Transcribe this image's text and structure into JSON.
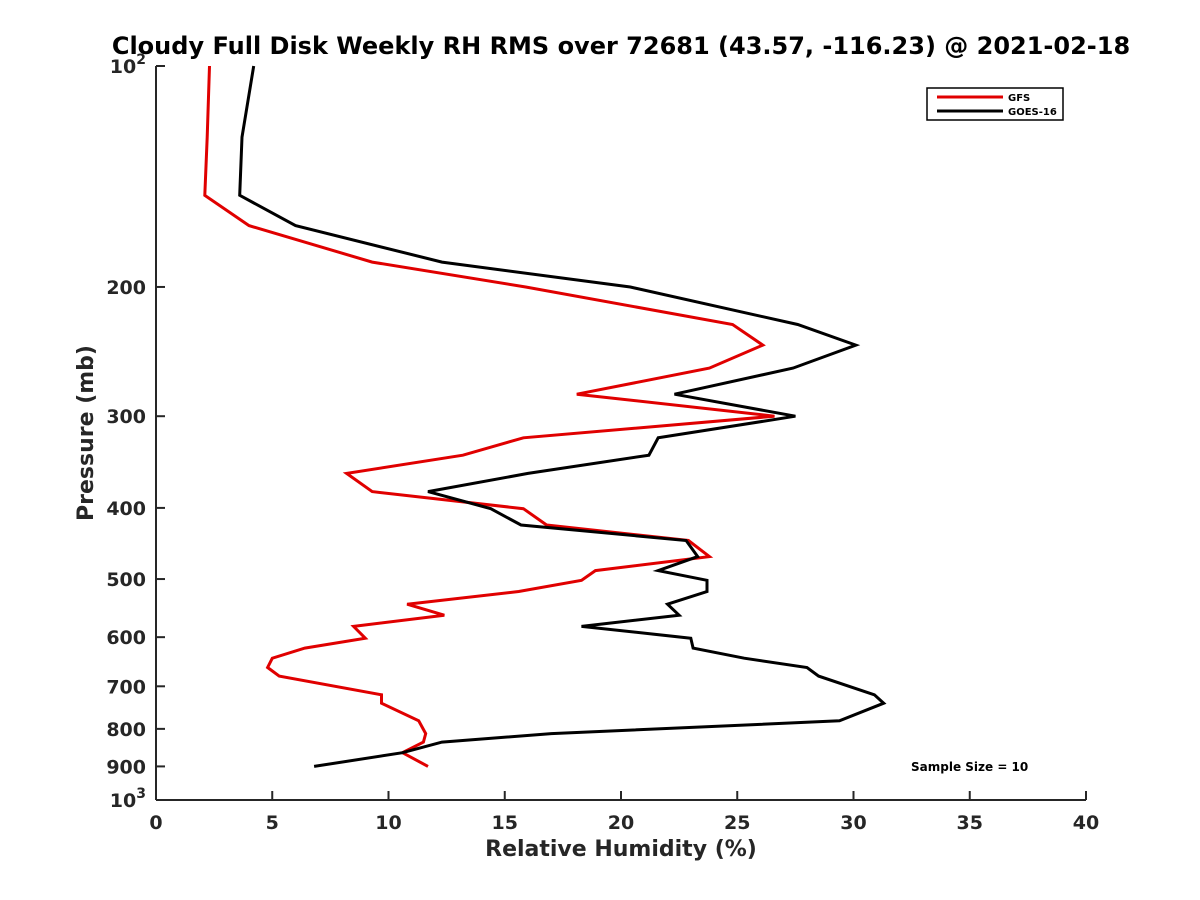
{
  "chart_data": {
    "type": "line",
    "title": "Cloudy Full Disk Weekly RH RMS over 72681 (43.57, -116.23) @ 2021-02-18",
    "xlabel": "Relative Humidity (%)",
    "ylabel": "Pressure (mb)",
    "xlim": [
      0,
      40
    ],
    "ylim": [
      100,
      1000
    ],
    "yscale": "log",
    "y_reversed": true,
    "x_ticks": [
      0,
      5,
      10,
      15,
      20,
      25,
      30,
      35,
      40
    ],
    "y_ticks": [
      {
        "value": 100,
        "label": "10",
        "sup": "2"
      },
      {
        "value": 200,
        "label": "200",
        "sup": ""
      },
      {
        "value": 300,
        "label": "300",
        "sup": ""
      },
      {
        "value": 400,
        "label": "400",
        "sup": ""
      },
      {
        "value": 500,
        "label": "500",
        "sup": ""
      },
      {
        "value": 600,
        "label": "600",
        "sup": ""
      },
      {
        "value": 700,
        "label": "700",
        "sup": ""
      },
      {
        "value": 800,
        "label": "800",
        "sup": ""
      },
      {
        "value": 900,
        "label": "900",
        "sup": ""
      },
      {
        "value": 1000,
        "label": "10",
        "sup": "3"
      }
    ],
    "grid": false,
    "legend_position": "top-right",
    "annotation": "Sample Size = 10",
    "series": [
      {
        "name": "GFS",
        "color": "#e00000",
        "points": [
          [
            2.3,
            100
          ],
          [
            2.2,
            125
          ],
          [
            2.1,
            150
          ],
          [
            4.0,
            165
          ],
          [
            9.3,
            185
          ],
          [
            15.9,
            200
          ],
          [
            24.8,
            225
          ],
          [
            26.1,
            240
          ],
          [
            23.8,
            258
          ],
          [
            18.1,
            280
          ],
          [
            26.6,
            300
          ],
          [
            15.8,
            321
          ],
          [
            13.2,
            339
          ],
          [
            8.2,
            359
          ],
          [
            9.3,
            380
          ],
          [
            15.8,
            401
          ],
          [
            16.8,
            422
          ],
          [
            22.9,
            443
          ],
          [
            23.8,
            466
          ],
          [
            18.9,
            487
          ],
          [
            18.3,
            502
          ],
          [
            15.6,
            520
          ],
          [
            10.8,
            541
          ],
          [
            12.4,
            560
          ],
          [
            8.5,
            580
          ],
          [
            9.0,
            602
          ],
          [
            6.4,
            621
          ],
          [
            5.0,
            641
          ],
          [
            4.8,
            660
          ],
          [
            5.3,
            678
          ],
          [
            9.7,
            719
          ],
          [
            9.7,
            738
          ],
          [
            11.3,
            780
          ],
          [
            11.6,
            812
          ],
          [
            11.5,
            834
          ],
          [
            10.6,
            862
          ],
          [
            11.7,
            900
          ]
        ]
      },
      {
        "name": "GOES-16",
        "color": "#000000",
        "points": [
          [
            4.2,
            100
          ],
          [
            3.7,
            125
          ],
          [
            3.6,
            150
          ],
          [
            6.0,
            165
          ],
          [
            12.3,
            185
          ],
          [
            20.4,
            200
          ],
          [
            27.6,
            225
          ],
          [
            30.1,
            240
          ],
          [
            27.4,
            258
          ],
          [
            22.3,
            280
          ],
          [
            27.5,
            300
          ],
          [
            21.6,
            321
          ],
          [
            21.2,
            339
          ],
          [
            16.0,
            359
          ],
          [
            11.7,
            380
          ],
          [
            14.4,
            401
          ],
          [
            15.7,
            422
          ],
          [
            22.8,
            443
          ],
          [
            23.3,
            466
          ],
          [
            21.6,
            487
          ],
          [
            23.7,
            502
          ],
          [
            23.7,
            520
          ],
          [
            22.0,
            541
          ],
          [
            22.5,
            560
          ],
          [
            18.3,
            580
          ],
          [
            23.0,
            602
          ],
          [
            23.1,
            621
          ],
          [
            25.3,
            641
          ],
          [
            28.0,
            660
          ],
          [
            28.5,
            678
          ],
          [
            30.9,
            719
          ],
          [
            31.3,
            738
          ],
          [
            29.4,
            780
          ],
          [
            17.0,
            812
          ],
          [
            12.3,
            834
          ],
          [
            10.6,
            862
          ],
          [
            6.8,
            900
          ]
        ]
      }
    ]
  }
}
